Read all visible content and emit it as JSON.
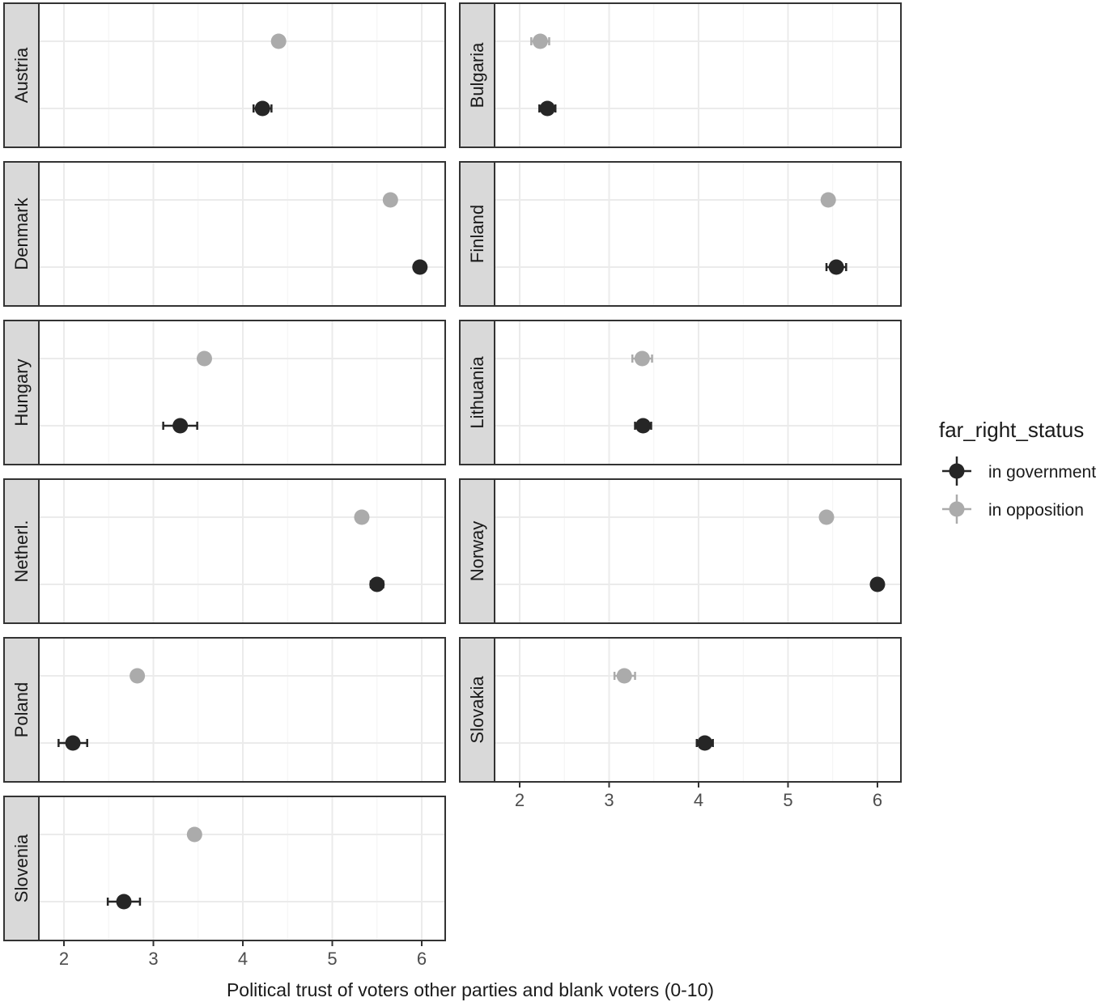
{
  "chart_data": {
    "type": "scatter",
    "subtype": "faceted dot plot with error bars",
    "xlabel": "Political trust of voters other parties and blank voters (0-10)",
    "ylabel": "",
    "xlim": [
      1.7,
      6.3
    ],
    "xticks": [
      2,
      3,
      4,
      5,
      6
    ],
    "grid": true,
    "legend": {
      "title": "far_right_status",
      "placement": "right",
      "entries": [
        {
          "label": "in government",
          "color": "#262626"
        },
        {
          "label": "in opposition",
          "color": "#ababab"
        }
      ]
    },
    "series_colors": {
      "in government": "#262626",
      "in opposition": "#ababab"
    },
    "facets": [
      {
        "country": "Austria",
        "in_opposition": {
          "value": 4.4,
          "low": 4.36,
          "high": 4.44
        },
        "in_government": {
          "value": 4.22,
          "low": 4.12,
          "high": 4.32
        }
      },
      {
        "country": "Bulgaria",
        "in_opposition": {
          "value": 2.23,
          "low": 2.13,
          "high": 2.33
        },
        "in_government": {
          "value": 2.31,
          "low": 2.22,
          "high": 2.4
        }
      },
      {
        "country": "Denmark",
        "in_opposition": {
          "value": 5.65,
          "low": 5.6,
          "high": 5.7
        },
        "in_government": {
          "value": 5.98,
          "low": 5.95,
          "high": 6.01
        }
      },
      {
        "country": "Finland",
        "in_opposition": {
          "value": 5.45,
          "low": 5.42,
          "high": 5.48
        },
        "in_government": {
          "value": 5.54,
          "low": 5.43,
          "high": 5.65
        }
      },
      {
        "country": "Hungary",
        "in_opposition": {
          "value": 3.57,
          "low": 3.54,
          "high": 3.6
        },
        "in_government": {
          "value": 3.3,
          "low": 3.11,
          "high": 3.49
        }
      },
      {
        "country": "Lithuania",
        "in_opposition": {
          "value": 3.37,
          "low": 3.26,
          "high": 3.48
        },
        "in_government": {
          "value": 3.38,
          "low": 3.29,
          "high": 3.47
        }
      },
      {
        "country": "Netherl.",
        "in_opposition": {
          "value": 5.33,
          "low": 5.3,
          "high": 5.36
        },
        "in_government": {
          "value": 5.5,
          "low": 5.43,
          "high": 5.57
        }
      },
      {
        "country": "Norway",
        "in_opposition": {
          "value": 5.43,
          "low": 5.4,
          "high": 5.46
        },
        "in_government": {
          "value": 6.0,
          "low": 5.97,
          "high": 6.03
        }
      },
      {
        "country": "Poland",
        "in_opposition": {
          "value": 2.82,
          "low": 2.79,
          "high": 2.85
        },
        "in_government": {
          "value": 2.1,
          "low": 1.94,
          "high": 2.26
        }
      },
      {
        "country": "Slovakia",
        "in_opposition": {
          "value": 3.17,
          "low": 3.06,
          "high": 3.29
        },
        "in_government": {
          "value": 4.07,
          "low": 3.98,
          "high": 4.16
        }
      },
      {
        "country": "Slovenia",
        "in_opposition": {
          "value": 3.46,
          "low": 3.43,
          "high": 3.49
        },
        "in_government": {
          "value": 2.67,
          "low": 2.49,
          "high": 2.85
        }
      }
    ]
  }
}
